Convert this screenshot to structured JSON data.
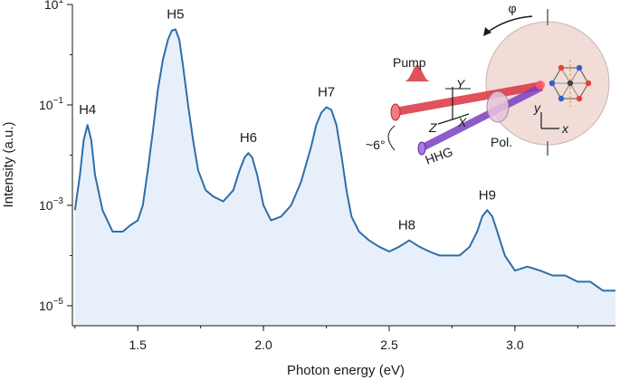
{
  "chart_data": {
    "type": "line",
    "title": "",
    "xlabel": "Photon energy (eV)",
    "ylabel": "Intensity (a.u.)",
    "xlim": [
      1.24,
      3.4
    ],
    "ylim": [
      4e-06,
      10
    ],
    "yscale": "log",
    "grid": false,
    "legend": "none",
    "fill_under": true,
    "colors": {
      "line": "#2f6ea8",
      "fill": "#e7f0fa"
    },
    "x_ticks": [
      {
        "value": 1.5,
        "label": "1.5"
      },
      {
        "value": 2.0,
        "label": "2.0"
      },
      {
        "value": 2.5,
        "label": "2.5"
      },
      {
        "value": 3.0,
        "label": "3.0"
      }
    ],
    "y_ticks": [
      {
        "value": 10,
        "base": "10",
        "exp": "1"
      },
      {
        "value": 0.1,
        "base": "10",
        "exp": "−1"
      },
      {
        "value": 0.001,
        "base": "10",
        "exp": "−3"
      },
      {
        "value": 1e-05,
        "base": "10",
        "exp": "−5"
      }
    ],
    "series": [
      {
        "x": [
          1.25,
          1.27,
          1.285,
          1.3,
          1.315,
          1.33,
          1.36,
          1.4,
          1.44,
          1.47,
          1.5,
          1.52,
          1.54,
          1.56,
          1.58,
          1.6,
          1.62,
          1.635,
          1.65,
          1.665,
          1.68,
          1.7,
          1.72,
          1.74,
          1.77,
          1.8,
          1.84,
          1.88,
          1.905,
          1.925,
          1.94,
          1.955,
          1.975,
          2.0,
          2.03,
          2.07,
          2.11,
          2.15,
          2.19,
          2.21,
          2.23,
          2.25,
          2.27,
          2.29,
          2.31,
          2.33,
          2.35,
          2.38,
          2.42,
          2.46,
          2.5,
          2.54,
          2.58,
          2.62,
          2.66,
          2.7,
          2.74,
          2.78,
          2.82,
          2.85,
          2.87,
          2.89,
          2.91,
          2.93,
          2.96,
          3.0,
          3.05,
          3.1,
          3.15,
          3.2,
          3.25,
          3.3,
          3.35,
          3.4
        ],
        "y": [
          0.0008,
          0.004,
          0.02,
          0.04,
          0.02,
          0.004,
          0.0008,
          0.0003,
          0.0003,
          0.0004,
          0.0005,
          0.001,
          0.005,
          0.03,
          0.2,
          0.8,
          2.0,
          3.0,
          3.2,
          2.0,
          0.6,
          0.1,
          0.02,
          0.005,
          0.002,
          0.0015,
          0.0012,
          0.002,
          0.005,
          0.009,
          0.011,
          0.009,
          0.004,
          0.001,
          0.0005,
          0.0006,
          0.001,
          0.003,
          0.015,
          0.04,
          0.07,
          0.09,
          0.08,
          0.04,
          0.01,
          0.002,
          0.0006,
          0.0003,
          0.0002,
          0.00015,
          0.00012,
          0.00015,
          0.0002,
          0.00015,
          0.00012,
          0.0001,
          0.0001,
          0.0001,
          0.00015,
          0.0003,
          0.0006,
          0.0008,
          0.0006,
          0.0003,
          0.0001,
          5e-05,
          6e-05,
          5e-05,
          4e-05,
          4e-05,
          3e-05,
          3e-05,
          2e-05,
          2e-05
        ]
      }
    ],
    "annotations": [
      {
        "text": "H4",
        "x": 1.3,
        "y": 0.04
      },
      {
        "text": "H5",
        "x": 1.65,
        "y": 3.2
      },
      {
        "text": "H6",
        "x": 1.94,
        "y": 0.011
      },
      {
        "text": "H7",
        "x": 2.25,
        "y": 0.09
      },
      {
        "text": "H8",
        "x": 2.57,
        "y": 0.0002
      },
      {
        "text": "H9",
        "x": 2.89,
        "y": 0.0008
      }
    ]
  },
  "inset": {
    "labels": {
      "phi": "φ",
      "pump": "Pump",
      "angle": "~6°",
      "hhg": "HHG",
      "pol": "Pol.",
      "lab_y": "Y",
      "lab_x": "X",
      "lab_z": "Z",
      "crystal_y": "y",
      "crystal_x": "x"
    },
    "colors": {
      "pump": "#d9343f",
      "hhg": "#7a3fc0",
      "sample": "#f1dcd8",
      "crystal_red": "#e8402f",
      "crystal_blue": "#2f5fd0"
    }
  }
}
